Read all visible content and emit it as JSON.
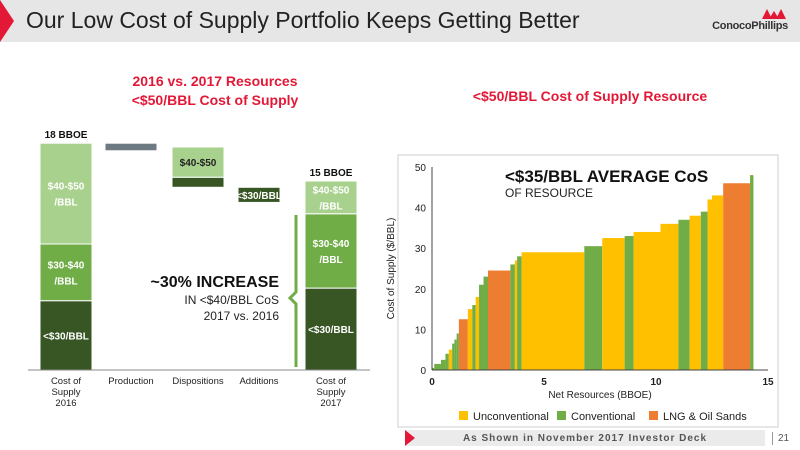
{
  "header": {
    "title": "Our Low Cost of Supply Portfolio Keeps Getting Better",
    "logo_text": "ConocoPhillips"
  },
  "colors": {
    "accent_red": "#e31837",
    "dark_green": "#375623",
    "mid_green": "#70ad47",
    "light_green": "#a9d18e",
    "grey_bar": "#6d7a82",
    "unconventional": "#ffc000",
    "conventional": "#70ad47",
    "lng_oil_sands": "#ed7d31"
  },
  "left_panel": {
    "title_line1": "2016 vs. 2017 Resources",
    "title_line2": "<$50/BBL Cost of Supply"
  },
  "right_panel": {
    "title": "<$50/BBL Cost of Supply Resource"
  },
  "chart_data": [
    {
      "type": "bar",
      "subtype": "waterfall",
      "categories": [
        "Cost of Supply 2016",
        "Production",
        "Dispositions",
        "Additions",
        "Cost of Supply 2017"
      ],
      "category_labels": [
        [
          "Cost of",
          "Supply",
          "2016"
        ],
        [
          "Production"
        ],
        [
          "Dispositions"
        ],
        [
          "Additions"
        ],
        [
          "Cost of",
          "Supply",
          "2017"
        ]
      ],
      "totals": [
        {
          "category": "Cost of Supply 2016",
          "value": 18,
          "label": "18 BBOE"
        },
        {
          "category": "Cost of Supply 2017",
          "value": 15,
          "label": "15 BBOE"
        }
      ],
      "stacks": {
        "Cost of Supply 2016": [
          {
            "segment": "<$30/BBL",
            "value": 5.5,
            "label": "<$30/BBL"
          },
          {
            "segment": "$30-$40/BBL",
            "value": 4.5,
            "label_lines": [
              "$30-$40",
              "/BBL"
            ]
          },
          {
            "segment": "$40-$50/BBL",
            "value": 8.0,
            "label_lines": [
              "$40-$50",
              "/BBL"
            ]
          }
        ],
        "Production": [
          {
            "segment": "Production",
            "value": -0.6,
            "label": ""
          }
        ],
        "Dispositions": [
          {
            "segment": "<$30/BBL",
            "value": -0.8,
            "label": ""
          },
          {
            "segment": "$40-$50",
            "value": -2.4,
            "label": "$40-$50"
          }
        ],
        "Additions": [
          {
            "segment": "<$30/BBL",
            "value": 1.2,
            "label": "<$30/BBL"
          }
        ],
        "Cost of Supply 2017": [
          {
            "segment": "<$30/BBL",
            "value": 6.5,
            "label": "<$30/BBL"
          },
          {
            "segment": "$30-$40/BBL",
            "value": 5.9,
            "label_lines": [
              "$30-$40",
              "/BBL"
            ]
          },
          {
            "segment": "$40-$50/BBL",
            "value": 2.6,
            "label_lines": [
              "$40-$50",
              "/BBL"
            ]
          }
        ]
      },
      "annotation": {
        "headline": "~30% INCREASE",
        "line2": "IN <$40/BBL CoS",
        "line3": "2017 vs. 2016"
      }
    },
    {
      "type": "area",
      "subtype": "step",
      "xlabel": "Net Resources (BBOE)",
      "ylabel": "Cost of Supply  ($/BBL)",
      "xlim": [
        0,
        15
      ],
      "ylim": [
        0,
        50
      ],
      "xticks": [
        0,
        5,
        10,
        15
      ],
      "yticks": [
        0,
        10,
        20,
        30,
        40,
        50
      ],
      "annotation": {
        "headline": "<$35/BBL AVERAGE CoS",
        "subline": "OF RESOURCE"
      },
      "legend": [
        "Unconventional",
        "Conventional",
        "LNG & Oil Sands"
      ],
      "legend_placement": "bottom",
      "steps": [
        {
          "x0": 0.0,
          "x1": 0.1,
          "y": 0.5,
          "cat": "Conventional"
        },
        {
          "x0": 0.1,
          "x1": 0.4,
          "y": 1.5,
          "cat": "Conventional"
        },
        {
          "x0": 0.4,
          "x1": 0.6,
          "y": 2.5,
          "cat": "Conventional"
        },
        {
          "x0": 0.6,
          "x1": 0.75,
          "y": 4,
          "cat": "Conventional"
        },
        {
          "x0": 0.75,
          "x1": 0.9,
          "y": 5,
          "cat": "Unconventional"
        },
        {
          "x0": 0.9,
          "x1": 1.0,
          "y": 6.5,
          "cat": "Conventional"
        },
        {
          "x0": 1.0,
          "x1": 1.1,
          "y": 7.5,
          "cat": "Conventional"
        },
        {
          "x0": 1.1,
          "x1": 1.2,
          "y": 9,
          "cat": "Conventional"
        },
        {
          "x0": 1.2,
          "x1": 1.6,
          "y": 12.5,
          "cat": "LNG & Oil Sands"
        },
        {
          "x0": 1.6,
          "x1": 1.8,
          "y": 15,
          "cat": "Unconventional"
        },
        {
          "x0": 1.8,
          "x1": 1.95,
          "y": 16,
          "cat": "Conventional"
        },
        {
          "x0": 1.95,
          "x1": 2.1,
          "y": 18,
          "cat": "Unconventional"
        },
        {
          "x0": 2.1,
          "x1": 2.3,
          "y": 21,
          "cat": "Conventional"
        },
        {
          "x0": 2.3,
          "x1": 2.5,
          "y": 23,
          "cat": "Conventional"
        },
        {
          "x0": 2.5,
          "x1": 3.5,
          "y": 24.5,
          "cat": "LNG & Oil Sands"
        },
        {
          "x0": 3.5,
          "x1": 3.7,
          "y": 26,
          "cat": "Conventional"
        },
        {
          "x0": 3.7,
          "x1": 3.8,
          "y": 27,
          "cat": "Unconventional"
        },
        {
          "x0": 3.8,
          "x1": 4.0,
          "y": 28,
          "cat": "Conventional"
        },
        {
          "x0": 4.0,
          "x1": 6.8,
          "y": 29,
          "cat": "Unconventional"
        },
        {
          "x0": 6.8,
          "x1": 7.6,
          "y": 30.5,
          "cat": "Conventional"
        },
        {
          "x0": 7.6,
          "x1": 8.6,
          "y": 32.5,
          "cat": "Unconventional"
        },
        {
          "x0": 8.6,
          "x1": 9.0,
          "y": 33,
          "cat": "Conventional"
        },
        {
          "x0": 9.0,
          "x1": 10.2,
          "y": 34,
          "cat": "Unconventional"
        },
        {
          "x0": 10.2,
          "x1": 11.0,
          "y": 36,
          "cat": "Unconventional"
        },
        {
          "x0": 11.0,
          "x1": 11.5,
          "y": 37,
          "cat": "Conventional"
        },
        {
          "x0": 11.5,
          "x1": 12.0,
          "y": 38,
          "cat": "Unconventional"
        },
        {
          "x0": 12.0,
          "x1": 12.3,
          "y": 39,
          "cat": "Conventional"
        },
        {
          "x0": 12.3,
          "x1": 12.5,
          "y": 42,
          "cat": "Unconventional"
        },
        {
          "x0": 12.5,
          "x1": 13.0,
          "y": 43,
          "cat": "Unconventional"
        },
        {
          "x0": 13.0,
          "x1": 14.2,
          "y": 46,
          "cat": "LNG & Oil Sands"
        },
        {
          "x0": 14.2,
          "x1": 14.35,
          "y": 48,
          "cat": "Conventional"
        }
      ]
    }
  ],
  "footer": {
    "text": "As Shown in November 2017 Investor Deck",
    "page": "21"
  }
}
